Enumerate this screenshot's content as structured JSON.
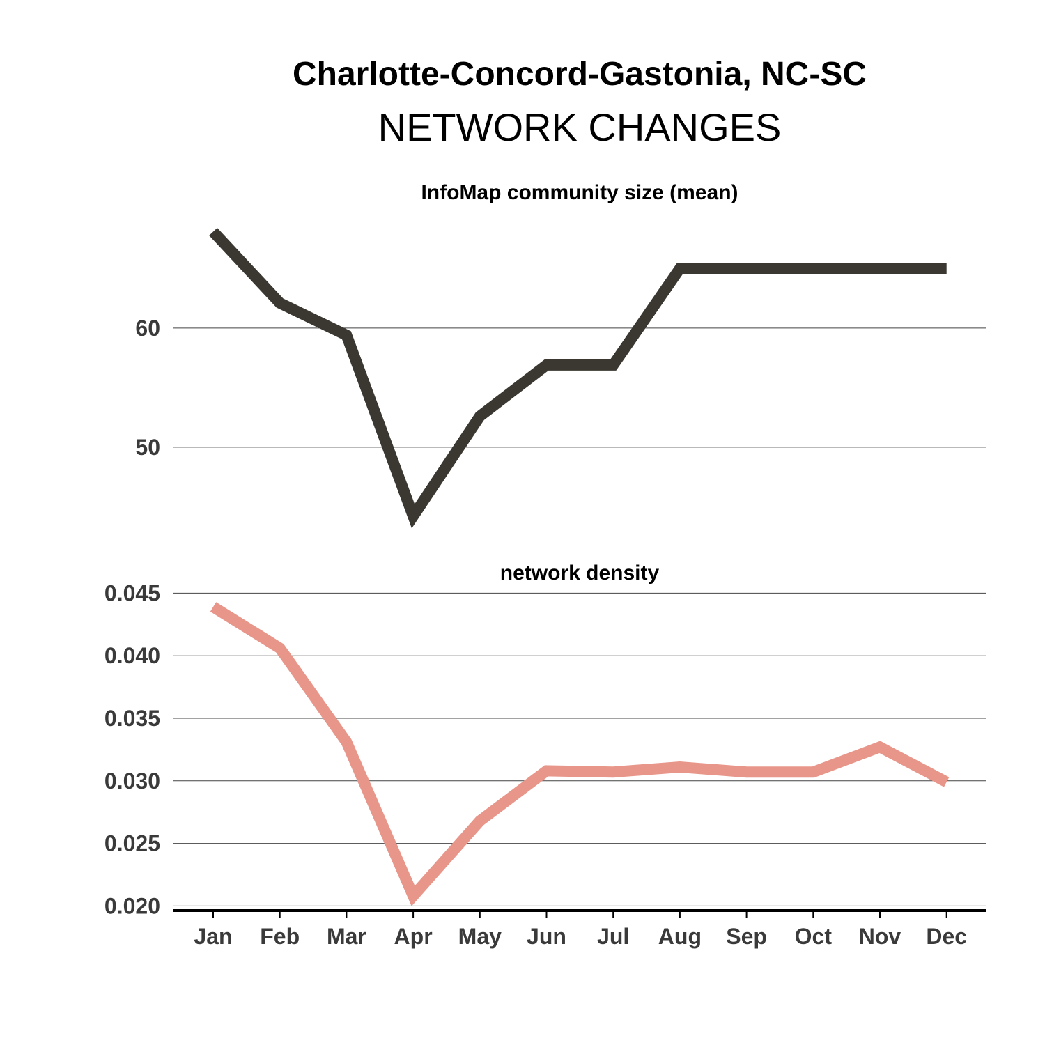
{
  "header": {
    "title": "Charlotte-Concord-Gastonia, NC-SC",
    "subtitle": "NETWORK CHANGES"
  },
  "chart_data": [
    {
      "type": "line",
      "title": "InfoMap community size (mean)",
      "categories": [
        "Jan",
        "Feb",
        "Mar",
        "Apr",
        "May",
        "Jun",
        "Jul",
        "Aug",
        "Sep",
        "Oct",
        "Nov",
        "Dec"
      ],
      "values": [
        68.1,
        62.1,
        59.4,
        44.2,
        52.6,
        56.9,
        56.9,
        65.0,
        65.0,
        65.0,
        65.0,
        65.0
      ],
      "yticks": [
        50,
        60
      ],
      "ytick_labels": [
        "50",
        "60"
      ],
      "ylim": [
        42.5,
        70
      ],
      "grid": true,
      "color": "#3b3731"
    },
    {
      "type": "line",
      "title": "network density",
      "categories": [
        "Jan",
        "Feb",
        "Mar",
        "Apr",
        "May",
        "Jun",
        "Jul",
        "Aug",
        "Sep",
        "Oct",
        "Nov",
        "Dec"
      ],
      "values": [
        0.0439,
        0.0406,
        0.0331,
        0.0208,
        0.0268,
        0.0308,
        0.0307,
        0.0311,
        0.0307,
        0.0307,
        0.0327,
        0.0299
      ],
      "yticks": [
        0.02,
        0.025,
        0.03,
        0.035,
        0.04,
        0.045
      ],
      "ytick_labels": [
        "0.020",
        "0.025",
        "0.030",
        "0.035",
        "0.040",
        "0.045"
      ],
      "ylim": [
        0.0198,
        0.0453
      ],
      "grid": true,
      "color": "#e8968a"
    }
  ]
}
